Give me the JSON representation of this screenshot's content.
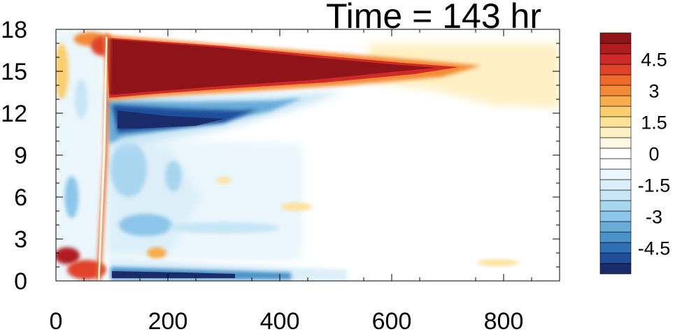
{
  "chart_data": {
    "type": "heatmap",
    "title": "Time = 143 hr",
    "xlabel": "",
    "ylabel": "",
    "xlim": [
      0,
      900
    ],
    "ylim": [
      0,
      18
    ],
    "x_ticks": [
      {
        "value": 0,
        "label": "0"
      },
      {
        "value": 200,
        "label": "200"
      },
      {
        "value": 400,
        "label": "400"
      },
      {
        "value": 600,
        "label": "600"
      },
      {
        "value": 800,
        "label": "800"
      }
    ],
    "y_ticks": [
      {
        "value": 0,
        "label": "0"
      },
      {
        "value": 3,
        "label": "3"
      },
      {
        "value": 6,
        "label": "6"
      },
      {
        "value": 9,
        "label": "9"
      },
      {
        "value": 12,
        "label": "12"
      },
      {
        "value": 15,
        "label": "15"
      },
      {
        "value": 18,
        "label": "18"
      }
    ],
    "colorbar": {
      "levels": [
        -5.5,
        -5,
        -4.5,
        -4,
        -3.5,
        -3,
        -2.5,
        -2,
        -1.5,
        -1,
        -0.5,
        0,
        0.5,
        1,
        1.5,
        2,
        2.5,
        3,
        3.5,
        4,
        4.5,
        5,
        5.5
      ],
      "colors": [
        "#1b2c6b",
        "#1f4f9b",
        "#2e6fb6",
        "#4a93c8",
        "#69acd8",
        "#8cc6ea",
        "#a9d6ef",
        "#c6e5f5",
        "#dceff9",
        "#eaf6fc",
        "#ffffff",
        "#ffffff",
        "#fff9e3",
        "#fff0c4",
        "#fde29a",
        "#fbcf6f",
        "#f8ac4c",
        "#f48a35",
        "#ee6a2a",
        "#e0432a",
        "#cf2a27",
        "#b01c20",
        "#8f1419"
      ],
      "tick_labels": [
        {
          "value": 4.5,
          "label": "4.5"
        },
        {
          "value": 3,
          "label": "3"
        },
        {
          "value": 1.5,
          "label": "1.5"
        },
        {
          "value": 0,
          "label": "0"
        },
        {
          "value": -1.5,
          "label": "-1.5"
        },
        {
          "value": -3,
          "label": "-3"
        },
        {
          "value": -4.5,
          "label": "-4.5"
        }
      ]
    },
    "features": [
      {
        "kind": "warm",
        "x": [
          90,
          690
        ],
        "y": [
          13,
          17.2
        ],
        "peak": 5.5
      },
      {
        "kind": "warm-weak",
        "x": [
          560,
          900
        ],
        "y": [
          12.5,
          17
        ],
        "peak": 1.0
      },
      {
        "kind": "cold",
        "x": [
          90,
          420
        ],
        "y": [
          10,
          13
        ],
        "peak": -5.5
      },
      {
        "kind": "cold",
        "x": [
          90,
          520
        ],
        "y": [
          0,
          1.2
        ],
        "peak": -4.0
      },
      {
        "kind": "cold-patchy",
        "x": [
          90,
          440
        ],
        "y": [
          1.5,
          10
        ],
        "peak": -2.5
      },
      {
        "kind": "warm",
        "x": [
          0,
          80
        ],
        "y": [
          0,
          2
        ],
        "peak": 5.0
      },
      {
        "kind": "warm",
        "x": [
          70,
          90
        ],
        "y": [
          0,
          18
        ],
        "peak": 4.0
      }
    ]
  }
}
